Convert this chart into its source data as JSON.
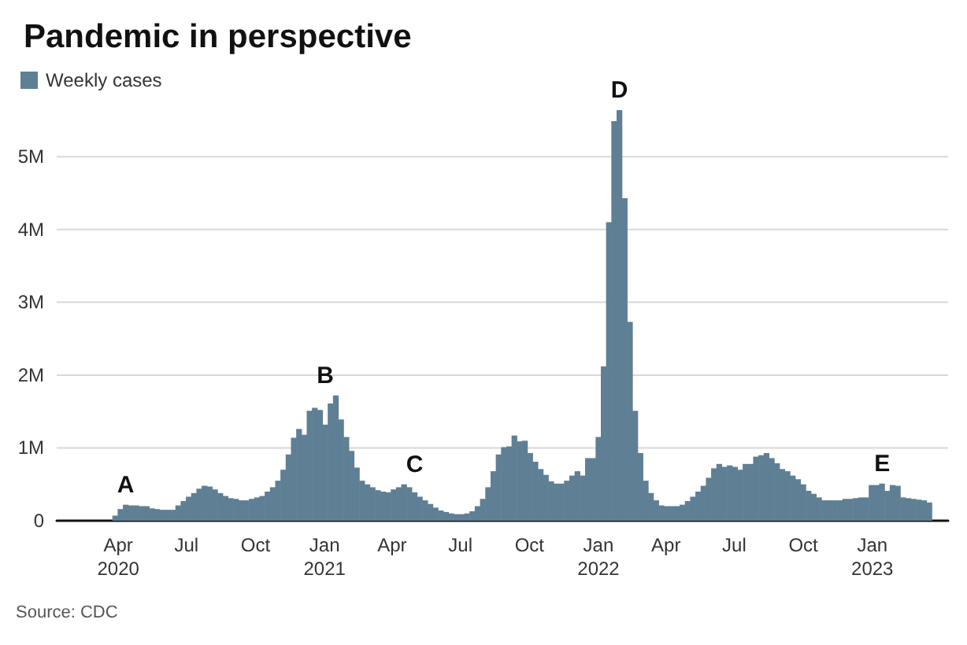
{
  "chart_data": {
    "type": "bar",
    "title": "Pandemic in perspective",
    "x": [
      "2020-03-28",
      "2020-04-04",
      "2020-04-11",
      "2020-04-18",
      "2020-04-25",
      "2020-05-02",
      "2020-05-09",
      "2020-05-16",
      "2020-05-23",
      "2020-05-30",
      "2020-06-06",
      "2020-06-13",
      "2020-06-20",
      "2020-06-27",
      "2020-07-04",
      "2020-07-11",
      "2020-07-18",
      "2020-07-25",
      "2020-08-01",
      "2020-08-08",
      "2020-08-15",
      "2020-08-22",
      "2020-08-29",
      "2020-09-05",
      "2020-09-12",
      "2020-09-19",
      "2020-09-26",
      "2020-10-03",
      "2020-10-10",
      "2020-10-17",
      "2020-10-24",
      "2020-10-31",
      "2020-11-07",
      "2020-11-14",
      "2020-11-21",
      "2020-11-28",
      "2020-12-05",
      "2020-12-12",
      "2020-12-19",
      "2020-12-26",
      "2021-01-02",
      "2021-01-09",
      "2021-01-16",
      "2021-01-23",
      "2021-01-30",
      "2021-02-06",
      "2021-02-13",
      "2021-02-20",
      "2021-02-27",
      "2021-03-06",
      "2021-03-13",
      "2021-03-20",
      "2021-03-27",
      "2021-04-03",
      "2021-04-10",
      "2021-04-17",
      "2021-04-24",
      "2021-05-01",
      "2021-05-08",
      "2021-05-15",
      "2021-05-22",
      "2021-05-29",
      "2021-06-05",
      "2021-06-12",
      "2021-06-19",
      "2021-06-26",
      "2021-07-03",
      "2021-07-10",
      "2021-07-17",
      "2021-07-24",
      "2021-07-31",
      "2021-08-07",
      "2021-08-14",
      "2021-08-21",
      "2021-08-28",
      "2021-09-04",
      "2021-09-11",
      "2021-09-18",
      "2021-09-25",
      "2021-10-02",
      "2021-10-09",
      "2021-10-16",
      "2021-10-23",
      "2021-10-30",
      "2021-11-06",
      "2021-11-13",
      "2021-11-20",
      "2021-11-27",
      "2021-12-04",
      "2021-12-11",
      "2021-12-18",
      "2021-12-25",
      "2022-01-01",
      "2022-01-08",
      "2022-01-15",
      "2022-01-22",
      "2022-01-29",
      "2022-02-05",
      "2022-02-12",
      "2022-02-19",
      "2022-02-26",
      "2022-03-05",
      "2022-03-12",
      "2022-03-19",
      "2022-03-26",
      "2022-04-02",
      "2022-04-09",
      "2022-04-16",
      "2022-04-23",
      "2022-04-30",
      "2022-05-07",
      "2022-05-14",
      "2022-05-21",
      "2022-05-28",
      "2022-06-04",
      "2022-06-11",
      "2022-06-18",
      "2022-06-25",
      "2022-07-02",
      "2022-07-09",
      "2022-07-16",
      "2022-07-23",
      "2022-07-30",
      "2022-08-06",
      "2022-08-13",
      "2022-08-20",
      "2022-08-27",
      "2022-09-03",
      "2022-09-10",
      "2022-09-17",
      "2022-09-24",
      "2022-10-01",
      "2022-10-08",
      "2022-10-15",
      "2022-10-22",
      "2022-10-29",
      "2022-11-05",
      "2022-11-12",
      "2022-11-19",
      "2022-11-26",
      "2022-12-03",
      "2022-12-10",
      "2022-12-17",
      "2022-12-24",
      "2022-12-31",
      "2023-01-07",
      "2023-01-14",
      "2023-01-21",
      "2023-01-28",
      "2023-02-04",
      "2023-02-11",
      "2023-02-18",
      "2023-02-25",
      "2023-03-04",
      "2023-03-11",
      "2023-03-18"
    ],
    "series": [
      {
        "name": "Weekly cases",
        "color": "#5f7f94",
        "values": [
          70000,
          160000,
          220000,
          210000,
          210000,
          200000,
          200000,
          170000,
          160000,
          150000,
          150000,
          150000,
          210000,
          270000,
          330000,
          380000,
          440000,
          480000,
          470000,
          430000,
          380000,
          340000,
          310000,
          300000,
          280000,
          280000,
          300000,
          320000,
          340000,
          400000,
          460000,
          550000,
          700000,
          910000,
          1140000,
          1260000,
          1180000,
          1510000,
          1550000,
          1520000,
          1320000,
          1610000,
          1720000,
          1390000,
          1150000,
          960000,
          730000,
          550000,
          500000,
          460000,
          420000,
          400000,
          390000,
          430000,
          460000,
          500000,
          460000,
          390000,
          330000,
          280000,
          230000,
          180000,
          140000,
          120000,
          100000,
          90000,
          90000,
          100000,
          130000,
          200000,
          300000,
          460000,
          680000,
          910000,
          1010000,
          1020000,
          1170000,
          1090000,
          1100000,
          930000,
          810000,
          710000,
          630000,
          540000,
          510000,
          510000,
          550000,
          620000,
          680000,
          620000,
          860000,
          860000,
          1150000,
          2120000,
          4100000,
          5490000,
          5640000,
          4430000,
          2730000,
          1510000,
          930000,
          550000,
          380000,
          280000,
          210000,
          200000,
          200000,
          200000,
          220000,
          270000,
          330000,
          400000,
          480000,
          590000,
          720000,
          780000,
          740000,
          760000,
          740000,
          700000,
          780000,
          780000,
          880000,
          900000,
          930000,
          860000,
          790000,
          710000,
          680000,
          620000,
          570000,
          500000,
          410000,
          370000,
          320000,
          280000,
          280000,
          280000,
          280000,
          300000,
          300000,
          310000,
          320000,
          320000,
          490000,
          490000,
          510000,
          410000,
          490000,
          480000,
          320000,
          310000,
          300000,
          290000,
          280000,
          250000
        ]
      }
    ],
    "xlim": [
      "2020-01-10",
      "2023-04-12"
    ],
    "xticks": [
      {
        "value": "2020-04-01",
        "label": "Apr\n2020"
      },
      {
        "value": "2020-07-01",
        "label": "Jul"
      },
      {
        "value": "2020-10-01",
        "label": "Oct"
      },
      {
        "value": "2021-01-01",
        "label": "Jan\n2021"
      },
      {
        "value": "2021-04-01",
        "label": "Apr"
      },
      {
        "value": "2021-07-01",
        "label": "Jul"
      },
      {
        "value": "2021-10-01",
        "label": "Oct"
      },
      {
        "value": "2022-01-01",
        "label": "Jan\n2022"
      },
      {
        "value": "2022-04-01",
        "label": "Apr"
      },
      {
        "value": "2022-07-01",
        "label": "Jul"
      },
      {
        "value": "2022-10-01",
        "label": "Oct"
      },
      {
        "value": "2023-01-01",
        "label": "Jan\n2023"
      }
    ],
    "ylim": [
      0,
      5640000
    ],
    "yticks": [
      0,
      {
        "value": 1000000,
        "label": "1M"
      },
      {
        "value": 2000000,
        "label": "2M"
      },
      {
        "value": 3000000,
        "label": "3M"
      },
      {
        "value": 4000000,
        "label": "4M"
      },
      {
        "value": 5000000,
        "label": "5M"
      }
    ],
    "grid": "y",
    "legend": "top left",
    "annotations": [
      {
        "text": "A",
        "x": "2020-04-11",
        "y": 220000
      },
      {
        "text": "B",
        "x": "2021-01-02",
        "y": 1720000
      },
      {
        "text": "C",
        "x": "2021-05-01",
        "y": 500000
      },
      {
        "text": "D",
        "x": "2022-01-29",
        "y": 5640000
      },
      {
        "text": "E",
        "x": "2023-01-14",
        "y": 510000
      },
      "Source: CDC"
    ]
  }
}
